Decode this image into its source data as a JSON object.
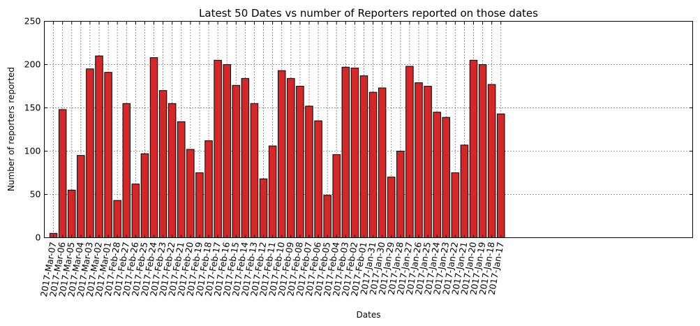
{
  "chart_data": {
    "type": "bar",
    "title": "Latest 50 Dates vs number of Reporters reported on those dates",
    "xlabel": "Dates",
    "ylabel": "Number of reporters reported",
    "ylim": [
      0,
      250
    ],
    "yticks": [
      0,
      50,
      100,
      150,
      200,
      250
    ],
    "xlim": [
      -1,
      70
    ],
    "grid": true,
    "bar_color": "#d62728",
    "categories": [
      "2017-Mar-07",
      "2017-Mar-06",
      "2017-Mar-05",
      "2017-Mar-04",
      "2017-Mar-03",
      "2017-Mar-02",
      "2017-Mar-01",
      "2017-Feb-28",
      "2017-Feb-27",
      "2017-Feb-26",
      "2017-Feb-25",
      "2017-Feb-24",
      "2017-Feb-23",
      "2017-Feb-22",
      "2017-Feb-21",
      "2017-Feb-20",
      "2017-Feb-19",
      "2017-Feb-18",
      "2017-Feb-17",
      "2017-Feb-16",
      "2017-Feb-15",
      "2017-Feb-14",
      "2017-Feb-13",
      "2017-Feb-12",
      "2017-Feb-11",
      "2017-Feb-10",
      "2017-Feb-09",
      "2017-Feb-08",
      "2017-Feb-07",
      "2017-Feb-06",
      "2017-Feb-05",
      "2017-Feb-04",
      "2017-Feb-03",
      "2017-Feb-02",
      "2017-Feb-01",
      "2017-Jan-31",
      "2017-Jan-30",
      "2017-Jan-29",
      "2017-Jan-28",
      "2017-Jan-27",
      "2017-Jan-26",
      "2017-Jan-25",
      "2017-Jan-24",
      "2017-Jan-23",
      "2017-Jan-22",
      "2017-Jan-21",
      "2017-Jan-20",
      "2017-Jan-19",
      "2017-Jan-18",
      "2017-Jan-17"
    ],
    "values": [
      5,
      148,
      55,
      95,
      195,
      210,
      191,
      43,
      155,
      62,
      97,
      208,
      170,
      155,
      134,
      102,
      75,
      112,
      205,
      200,
      176,
      184,
      155,
      68,
      106,
      193,
      184,
      175,
      152,
      135,
      49,
      96,
      197,
      196,
      187,
      168,
      173,
      70,
      100,
      198,
      179,
      175,
      145,
      139,
      75,
      107,
      205,
      200,
      177,
      143
    ]
  }
}
